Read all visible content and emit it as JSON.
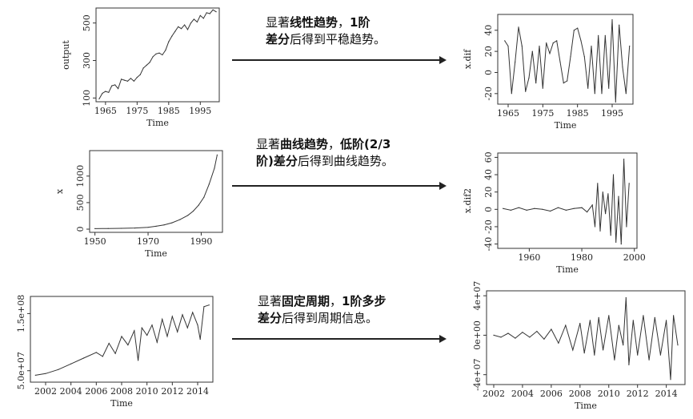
{
  "rows": [
    {
      "caption_parts": [
        {
          "t": "显著",
          "b": false
        },
        {
          "t": "线性趋势",
          "b": true
        },
        {
          "t": "，",
          "b": false
        },
        {
          "t": "1阶",
          "b": true
        },
        {
          "t": "\n",
          "b": false
        },
        {
          "t": "差分",
          "b": true
        },
        {
          "t": "后得到平稳趋势。",
          "b": false
        }
      ]
    },
    {
      "caption_parts": [
        {
          "t": "显著",
          "b": false
        },
        {
          "t": "曲线趋势",
          "b": true
        },
        {
          "t": "，",
          "b": false
        },
        {
          "t": "低阶(2/3",
          "b": true
        },
        {
          "t": "\n",
          "b": false
        },
        {
          "t": "阶)差分",
          "b": true
        },
        {
          "t": "后得到曲线趋势。",
          "b": false
        }
      ]
    },
    {
      "caption_parts": [
        {
          "t": "显著",
          "b": false
        },
        {
          "t": "固定周期",
          "b": true
        },
        {
          "t": "，",
          "b": false
        },
        {
          "t": "1阶多步",
          "b": true
        },
        {
          "t": "\n",
          "b": false
        },
        {
          "t": "差分",
          "b": true
        },
        {
          "t": "后得到周期信息。",
          "b": false
        }
      ]
    }
  ],
  "chart_data": [
    {
      "id": "p1",
      "type": "line",
      "xlabel": "Time",
      "ylabel": "output",
      "xlim": [
        1962,
        2001
      ],
      "ylim": [
        80,
        580
      ],
      "xticks": [
        1965,
        1975,
        1985,
        1995
      ],
      "xtick_labels": [
        "1965",
        "1975",
        "1985",
        "1995"
      ],
      "yticks": [
        100,
        300,
        500
      ],
      "ytick_labels": [
        "100",
        "300",
        "500"
      ],
      "x": [
        1963,
        1964,
        1965,
        1966,
        1967,
        1968,
        1969,
        1970,
        1971,
        1972,
        1973,
        1974,
        1975,
        1976,
        1977,
        1978,
        1979,
        1980,
        1981,
        1982,
        1983,
        1984,
        1985,
        1986,
        1987,
        1988,
        1989,
        1990,
        1991,
        1992,
        1993,
        1994,
        1995,
        1996,
        1997,
        1998,
        1999,
        2000
      ],
      "y": [
        95,
        125,
        135,
        130,
        165,
        170,
        150,
        200,
        195,
        190,
        205,
        190,
        210,
        225,
        260,
        275,
        290,
        320,
        335,
        340,
        330,
        355,
        400,
        430,
        455,
        480,
        470,
        490,
        465,
        500,
        520,
        505,
        540,
        525,
        555,
        550,
        570,
        560
      ]
    },
    {
      "id": "p2",
      "type": "line",
      "xlabel": "Time",
      "ylabel": "x.dif",
      "xlim": [
        1962,
        2001
      ],
      "ylim": [
        -30,
        55
      ],
      "xticks": [
        1965,
        1975,
        1985,
        1995
      ],
      "xtick_labels": [
        "1965",
        "1975",
        "1985",
        "1995"
      ],
      "yticks": [
        -20,
        0,
        20,
        40
      ],
      "ytick_labels": [
        "-20",
        "0",
        "20",
        "40"
      ],
      "x": [
        1964,
        1965,
        1966,
        1967,
        1968,
        1969,
        1970,
        1971,
        1972,
        1973,
        1974,
        1975,
        1976,
        1977,
        1978,
        1979,
        1980,
        1981,
        1982,
        1983,
        1984,
        1985,
        1986,
        1987,
        1988,
        1989,
        1990,
        1991,
        1992,
        1993,
        1994,
        1995,
        1996,
        1997,
        1998,
        1999,
        2000
      ],
      "y": [
        30,
        25,
        -20,
        10,
        43,
        25,
        -18,
        -5,
        20,
        -10,
        25,
        -15,
        28,
        18,
        28,
        30,
        10,
        -10,
        -8,
        15,
        40,
        42,
        30,
        15,
        -15,
        25,
        -20,
        35,
        -20,
        35,
        -15,
        50,
        -28,
        45,
        5,
        -20,
        25
      ]
    },
    {
      "id": "p3",
      "type": "line",
      "xlabel": "Time",
      "ylabel": "x",
      "xlim": [
        1948,
        1998
      ],
      "ylim": [
        -60,
        1480
      ],
      "xticks": [
        1950,
        1970,
        1990
      ],
      "xtick_labels": [
        "1950",
        "1970",
        "1990"
      ],
      "yticks": [
        0,
        500,
        1000
      ],
      "ytick_labels": [
        "0",
        "500",
        "1000"
      ],
      "x": [
        1950,
        1955,
        1960,
        1965,
        1970,
        1973,
        1976,
        1979,
        1982,
        1985,
        1987,
        1989,
        1991,
        1993,
        1995,
        1996
      ],
      "y": [
        10,
        12,
        15,
        22,
        35,
        55,
        80,
        120,
        180,
        260,
        340,
        450,
        600,
        850,
        1150,
        1400
      ]
    },
    {
      "id": "p4",
      "type": "line",
      "xlabel": "Time",
      "ylabel": "x.dif2",
      "xlim": [
        1948,
        2001
      ],
      "ylim": [
        -45,
        65
      ],
      "xticks": [
        1960,
        1980,
        2000
      ],
      "xtick_labels": [
        "1960",
        "1980",
        "2000"
      ],
      "yticks": [
        -40,
        -20,
        0,
        20,
        40,
        60
      ],
      "ytick_labels": [
        "-40",
        "-20",
        "0",
        "20",
        "40",
        "60"
      ],
      "x": [
        1950,
        1953,
        1956,
        1959,
        1962,
        1965,
        1968,
        1971,
        1974,
        1977,
        1980,
        1982,
        1984,
        1985,
        1986,
        1987,
        1988,
        1989,
        1990,
        1991,
        1992,
        1993,
        1994,
        1995,
        1996,
        1997,
        1998
      ],
      "y": [
        1,
        -1,
        2,
        -1,
        1,
        0,
        -2,
        2,
        -1,
        1,
        2,
        -3,
        5,
        -20,
        30,
        -25,
        20,
        -5,
        18,
        -30,
        40,
        -38,
        15,
        -40,
        58,
        -20,
        30
      ]
    },
    {
      "id": "p5",
      "type": "line",
      "xlabel": "Time",
      "ylabel": "",
      "xlim": [
        2000.8,
        2015.2
      ],
      "ylim": [
        30000000,
        180000000
      ],
      "xticks": [
        2002,
        2004,
        2006,
        2008,
        2010,
        2012,
        2014
      ],
      "xtick_labels": [
        "2002",
        "2004",
        "2006",
        "2008",
        "2010",
        "2012",
        "2014"
      ],
      "yticks": [
        50000000,
        150000000
      ],
      "ytick_labels": [
        "5.0e+07",
        "1.5e+08"
      ],
      "x": [
        2001.2,
        2002,
        2003,
        2004,
        2005,
        2006,
        2006.5,
        2007,
        2007.5,
        2008,
        2008.5,
        2009,
        2009.3,
        2009.6,
        2010,
        2010.4,
        2010.8,
        2011.2,
        2011.6,
        2012,
        2012.4,
        2012.8,
        2013.2,
        2013.6,
        2014,
        2014.2,
        2014.5,
        2014.9
      ],
      "y": [
        42000000,
        45000000,
        52000000,
        62000000,
        72000000,
        82000000,
        75000000,
        98000000,
        80000000,
        110000000,
        95000000,
        120000000,
        68000000,
        125000000,
        112000000,
        130000000,
        100000000,
        140000000,
        110000000,
        145000000,
        118000000,
        148000000,
        125000000,
        152000000,
        130000000,
        105000000,
        162000000,
        165000000
      ]
    },
    {
      "id": "p6",
      "type": "line",
      "xlabel": "Time",
      "ylabel": "",
      "xlim": [
        2001.5,
        2015.3
      ],
      "ylim": [
        -50000000,
        45000000
      ],
      "xticks": [
        2002,
        2004,
        2006,
        2008,
        2010,
        2012,
        2014
      ],
      "xtick_labels": [
        "2002",
        "2004",
        "2006",
        "2008",
        "2010",
        "2012",
        "2014"
      ],
      "yticks": [
        -40000000,
        0,
        40000000
      ],
      "ytick_labels": [
        "-4e+07",
        "0e+00",
        "4e+07"
      ],
      "x": [
        2002,
        2002.5,
        2003,
        2003.5,
        2004,
        2004.5,
        2005,
        2005.5,
        2006,
        2006.5,
        2007,
        2007.5,
        2008,
        2008.3,
        2008.7,
        2009,
        2009.3,
        2009.6,
        2010,
        2010.4,
        2010.7,
        2011,
        2011.2,
        2011.4,
        2011.7,
        2012,
        2012.4,
        2012.8,
        2013.2,
        2013.6,
        2014,
        2014.3,
        2014.5,
        2014.8
      ],
      "y": [
        0,
        -2000000,
        2000000,
        -3000000,
        3000000,
        -2000000,
        4000000,
        -4000000,
        6000000,
        -8000000,
        10000000,
        -15000000,
        12000000,
        -18000000,
        15000000,
        -20000000,
        18000000,
        -15000000,
        20000000,
        -25000000,
        10000000,
        -10000000,
        38000000,
        -30000000,
        15000000,
        -20000000,
        20000000,
        -25000000,
        18000000,
        -20000000,
        15000000,
        -45000000,
        20000000,
        -10000000
      ]
    }
  ]
}
